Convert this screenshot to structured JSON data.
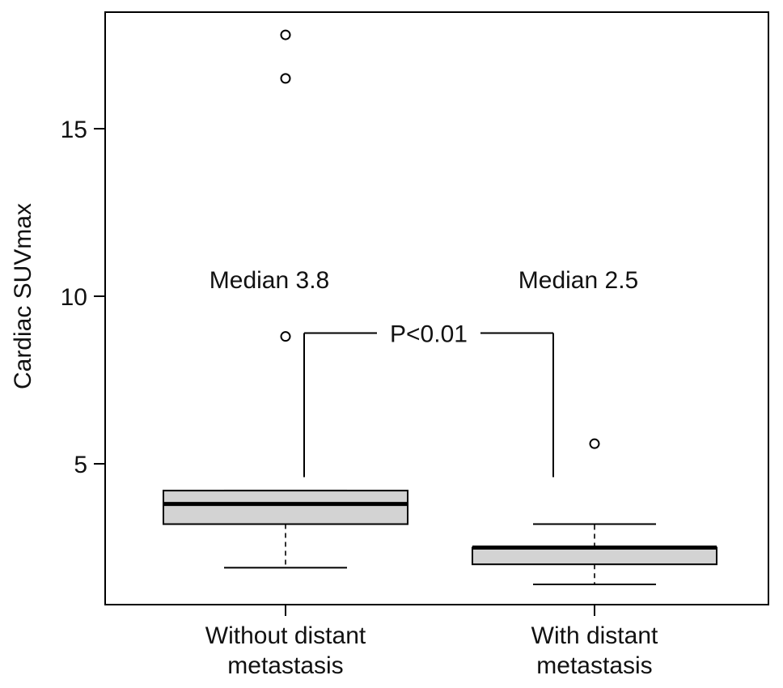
{
  "chart_data": {
    "type": "box",
    "ylabel": "Cardiac SUVmax",
    "yticks": [
      5,
      10,
      15
    ],
    "ylim": [
      0.6,
      18.5
    ],
    "grid": false,
    "groups": [
      {
        "label_lines": [
          "Without distant",
          "metastasis"
        ],
        "annotation": "Median 3.8",
        "whisker_low": 1.9,
        "q1": 3.2,
        "median": 3.8,
        "q3": 4.2,
        "whisker_high": 4.2,
        "outliers": [
          8.8,
          16.5,
          17.8
        ]
      },
      {
        "label_lines": [
          "With distant",
          "metastasis"
        ],
        "annotation": "Median 2.5",
        "whisker_low": 1.4,
        "q1": 2.0,
        "median": 2.5,
        "q3": 2.5,
        "whisker_high": 3.2,
        "outliers": [
          5.6
        ]
      }
    ],
    "significance": {
      "label": "P<0.01",
      "between": [
        0,
        1
      ],
      "bracket_y": 8.9,
      "leg_bottom_y": 4.6
    },
    "colors": {
      "box_fill": "#d3d3d3",
      "line": "#000000"
    }
  }
}
